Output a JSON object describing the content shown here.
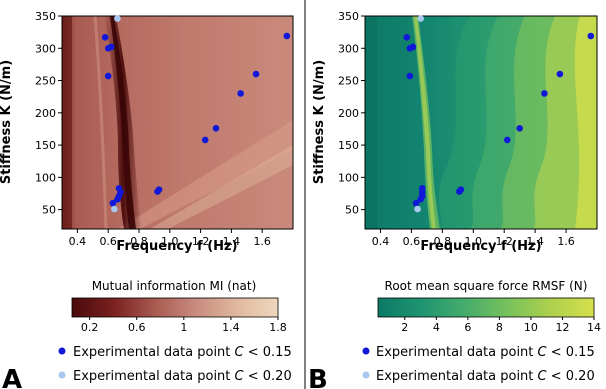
{
  "panels": [
    {
      "id": "A",
      "panel_label": "A",
      "colorbar": {
        "label": "Mutual information MI (nat)",
        "ticks": [
          "0.2",
          "0.6",
          "1",
          "1.4",
          "1.8"
        ],
        "tick_values": [
          0.2,
          0.6,
          1.0,
          1.4,
          1.8
        ],
        "range": [
          0.05,
          1.8
        ],
        "colors": [
          "#4a0a0a",
          "#7a2020",
          "#a85a50",
          "#c98b7e",
          "#dfb89f",
          "#eed8bd"
        ]
      },
      "legend": [
        {
          "marker_color": "#1118d8",
          "text_prefix": "Experimental data point ",
          "text_var": "C",
          "text_suffix": " < 0.15"
        },
        {
          "marker_color": "#a8c8f0",
          "text_prefix": "Experimental data point ",
          "text_var": "C",
          "text_suffix": " < 0.20"
        }
      ]
    },
    {
      "id": "B",
      "panel_label": "B",
      "colorbar": {
        "label": "Root mean square force RMSF (N)",
        "ticks": [
          "2",
          "4",
          "6",
          "8",
          "10",
          "12",
          "14"
        ],
        "tick_values": [
          2,
          4,
          6,
          8,
          10,
          12,
          14
        ],
        "range": [
          0.3,
          14
        ],
        "colors": [
          "#0b7a66",
          "#1f9470",
          "#45ac6c",
          "#77c15c",
          "#aed04e",
          "#d6e04c"
        ]
      },
      "legend": [
        {
          "marker_color": "#1118d8",
          "text_prefix": "Experimental data point ",
          "text_var": "C",
          "text_suffix": " < 0.15"
        },
        {
          "marker_color": "#a8c8f0",
          "text_prefix": "Experimental data point ",
          "text_var": "C",
          "text_suffix": " < 0.20"
        }
      ]
    }
  ],
  "chart_data": [
    {
      "type": "heatmap",
      "xlabel": "Frequency f (Hz)",
      "ylabel": "Stiffness K (N/m)",
      "xlim": [
        0.3,
        1.8
      ],
      "ylim": [
        20,
        350
      ],
      "xticks": [
        0.4,
        0.6,
        0.8,
        1.0,
        1.2,
        1.4,
        1.6
      ],
      "yticks": [
        50,
        100,
        150,
        200,
        250,
        300,
        350
      ],
      "colorbar_label": "Mutual information MI (nat)",
      "series": [
        {
          "name": "Experimental data point C < 0.15",
          "color": "#1118d8",
          "points": [
            [
              0.58,
              317
            ],
            [
              0.6,
              300
            ],
            [
              0.62,
              302
            ],
            [
              0.6,
              257
            ],
            [
              0.63,
              60
            ],
            [
              0.66,
              66
            ],
            [
              0.67,
              71
            ],
            [
              0.68,
              77
            ],
            [
              0.67,
              83
            ],
            [
              0.92,
              78
            ],
            [
              0.93,
              81
            ],
            [
              1.23,
              158
            ],
            [
              1.3,
              176
            ],
            [
              1.46,
              230
            ],
            [
              1.56,
              260
            ],
            [
              1.76,
              319
            ]
          ]
        },
        {
          "name": "Experimental data point C < 0.20",
          "color": "#a8c8f0",
          "points": [
            [
              0.66,
              346
            ],
            [
              0.64,
              51
            ]
          ]
        }
      ]
    },
    {
      "type": "heatmap",
      "xlabel": "Frequency f (Hz)",
      "ylabel": "Stiffness K (N/m)",
      "xlim": [
        0.3,
        1.8
      ],
      "ylim": [
        20,
        350
      ],
      "xticks": [
        0.4,
        0.6,
        0.8,
        1.0,
        1.2,
        1.4,
        1.6
      ],
      "yticks": [
        50,
        100,
        150,
        200,
        250,
        300,
        350
      ],
      "colorbar_label": "Root mean square force RMSF (N)",
      "series": [
        {
          "name": "Experimental data point C < 0.15",
          "color": "#1118d8",
          "points": [
            [
              0.57,
              317
            ],
            [
              0.59,
              300
            ],
            [
              0.61,
              302
            ],
            [
              0.59,
              257
            ],
            [
              0.63,
              60
            ],
            [
              0.66,
              66
            ],
            [
              0.67,
              71
            ],
            [
              0.67,
              77
            ],
            [
              0.67,
              83
            ],
            [
              0.91,
              78
            ],
            [
              0.92,
              81
            ],
            [
              1.22,
              158
            ],
            [
              1.3,
              176
            ],
            [
              1.46,
              230
            ],
            [
              1.56,
              260
            ],
            [
              1.76,
              319
            ]
          ]
        },
        {
          "name": "Experimental data point C < 0.20",
          "color": "#a8c8f0",
          "points": [
            [
              0.66,
              346
            ],
            [
              0.64,
              51
            ]
          ]
        }
      ]
    }
  ]
}
